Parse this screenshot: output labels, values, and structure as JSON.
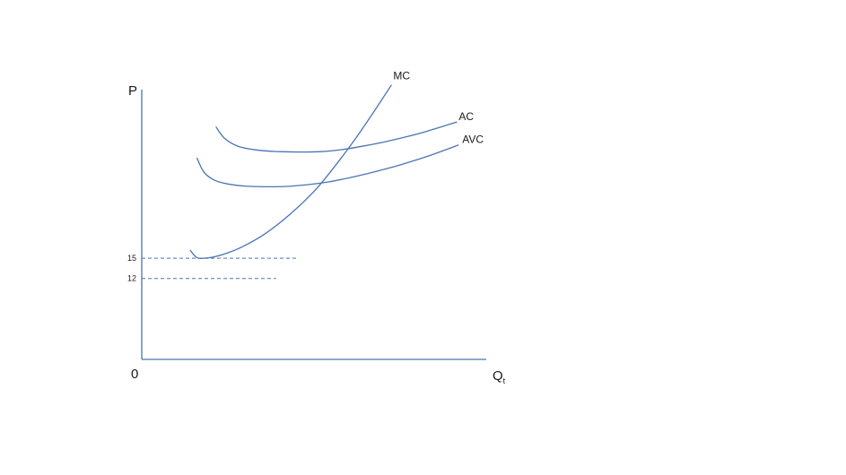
{
  "chart_data": {
    "type": "line",
    "title": "",
    "ylabel": "P",
    "xlabel_main": "Q",
    "xlabel_sub": "t",
    "origin_label": "0",
    "xlim": [
      0,
      100
    ],
    "ylim": [
      0,
      40
    ],
    "grid": false,
    "y_ticks": [
      {
        "value": 15,
        "label": "15"
      },
      {
        "value": 12,
        "label": "12"
      }
    ],
    "series": [
      {
        "name": "MC",
        "color": "#4a74b4",
        "x": [
          14,
          16,
          18,
          21,
          25,
          30,
          36,
          43,
          50,
          56,
          62,
          68,
          72.5
        ],
        "y": [
          16.2,
          15.1,
          15.0,
          15.2,
          15.8,
          16.9,
          18.7,
          21.5,
          24.9,
          28.6,
          32.7,
          37.2,
          40.7
        ]
      },
      {
        "name": "AC",
        "color": "#4a74b4",
        "x": [
          21.5,
          24,
          28,
          34,
          40,
          46,
          52,
          58,
          64,
          70,
          76,
          82,
          91.5
        ],
        "y": [
          34.5,
          32.8,
          31.6,
          31.0,
          30.8,
          30.75,
          30.8,
          31.1,
          31.6,
          32.2,
          32.9,
          33.7,
          35.2
        ]
      },
      {
        "name": "AVC",
        "color": "#4a74b4",
        "x": [
          16,
          18,
          21,
          25,
          30,
          36,
          42,
          48,
          54,
          60,
          66,
          72,
          78,
          84,
          92
        ],
        "y": [
          29.9,
          27.8,
          26.6,
          26.0,
          25.7,
          25.6,
          25.65,
          25.9,
          26.3,
          26.9,
          27.6,
          28.4,
          29.3,
          30.3,
          31.8
        ]
      }
    ],
    "reference_lines": [
      {
        "y": 15,
        "to_x": 45,
        "style": "dashed"
      },
      {
        "y": 12,
        "to_x": 39,
        "style": "dashed"
      }
    ]
  }
}
